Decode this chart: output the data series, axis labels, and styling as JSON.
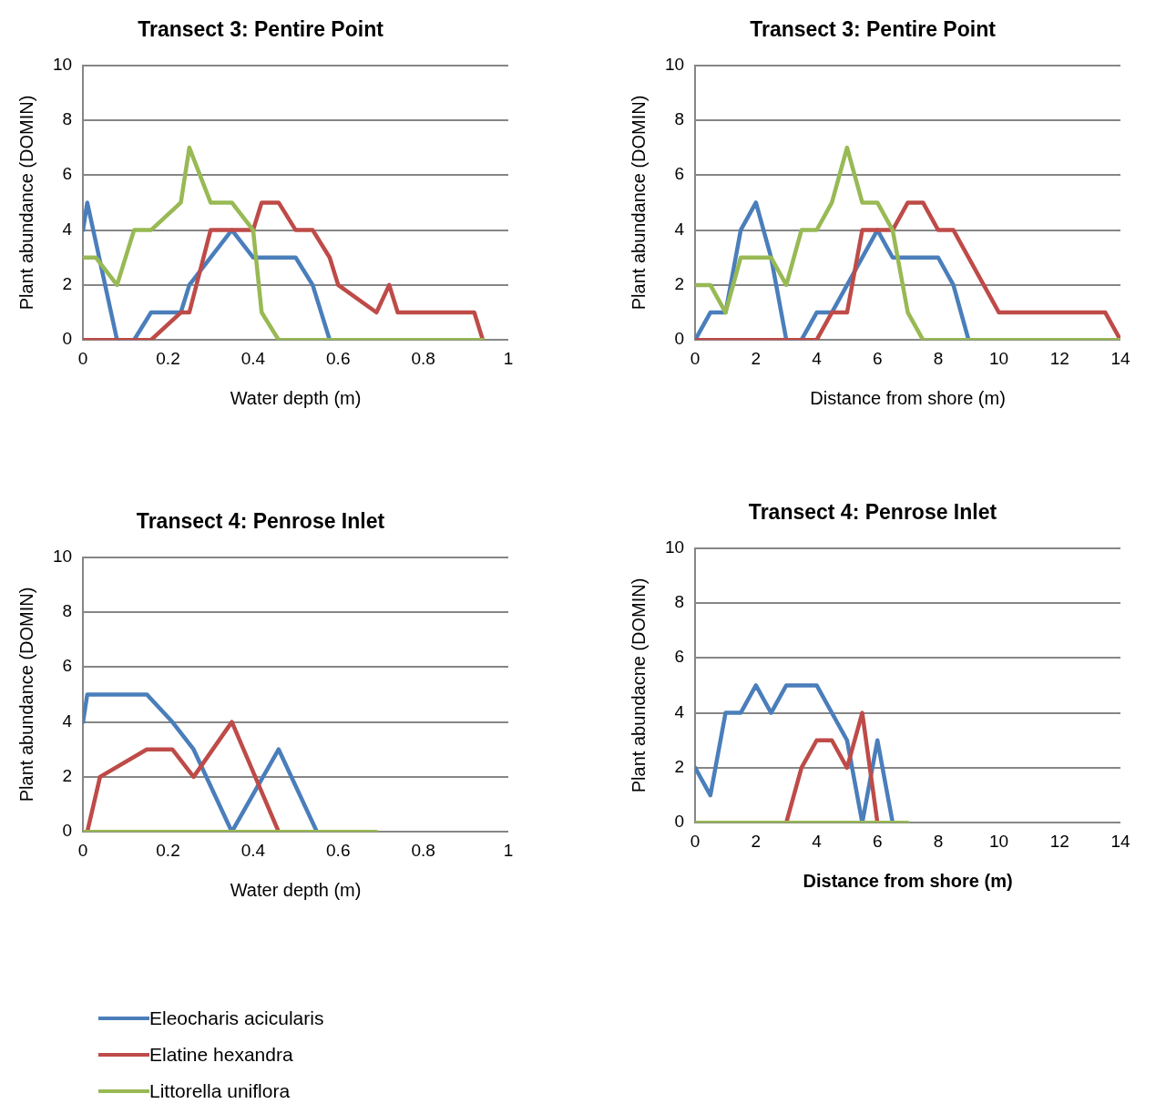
{
  "chart_data": [
    {
      "type": "line",
      "title": "Transect 3: Pentire Point",
      "xlabel": "Water depth (m)",
      "ylabel": "Plant abundance (DOMIN)",
      "xlim": [
        0,
        1
      ],
      "xticks": [
        0,
        0.2,
        0.4,
        0.6,
        0.8,
        1
      ],
      "ylim": [
        0,
        10
      ],
      "yticks": [
        0,
        2,
        4,
        6,
        8,
        10
      ],
      "grid": "y",
      "legend": false,
      "series": [
        {
          "color": "#4a7ebb",
          "x": [
            0,
            0.01,
            0.08,
            0.12,
            0.16,
            0.23,
            0.25,
            0.35,
            0.4,
            0.5,
            0.54,
            0.58
          ],
          "values": [
            4,
            5,
            0,
            0,
            1,
            1,
            2,
            4,
            3,
            3,
            2,
            0
          ]
        },
        {
          "color": "#be4b48",
          "x": [
            0,
            0.16,
            0.23,
            0.25,
            0.3,
            0.4,
            0.42,
            0.46,
            0.5,
            0.54,
            0.58,
            0.6,
            0.69,
            0.72,
            0.74,
            0.92,
            0.94
          ],
          "values": [
            0,
            0,
            1,
            1,
            4,
            4,
            5,
            5,
            4,
            4,
            3,
            2,
            1,
            2,
            1,
            1,
            0
          ]
        },
        {
          "color": "#98b954",
          "x": [
            0,
            0.03,
            0.08,
            0.12,
            0.16,
            0.23,
            0.25,
            0.3,
            0.35,
            0.4,
            0.42,
            0.46,
            0.94
          ],
          "values": [
            3,
            3,
            2,
            4,
            4,
            5,
            7,
            5,
            5,
            4,
            1,
            0,
            0
          ]
        }
      ]
    },
    {
      "type": "line",
      "title": "Transect 3: Pentire Point",
      "xlabel": "Distance from shore (m)",
      "ylabel": "Plant abundance (DOMIN)",
      "xlim": [
        0,
        14
      ],
      "xticks": [
        0,
        2,
        4,
        6,
        8,
        10,
        12,
        14
      ],
      "ylim": [
        0,
        10
      ],
      "yticks": [
        0,
        2,
        4,
        6,
        8,
        10
      ],
      "grid": "y",
      "legend": false,
      "series": [
        {
          "color": "#4a7ebb",
          "x": [
            0,
            0.5,
            1,
            1.5,
            2,
            2.5,
            3,
            3.5,
            4,
            4.5,
            6,
            6.5,
            8,
            8.5,
            9
          ],
          "values": [
            0,
            1,
            1,
            4,
            5,
            3,
            0,
            0,
            1,
            1,
            4,
            3,
            3,
            2,
            0
          ]
        },
        {
          "color": "#be4b48",
          "x": [
            0,
            4,
            4.5,
            5,
            5.5,
            6.5,
            7,
            7.5,
            8,
            8.5,
            10,
            13.5,
            14
          ],
          "values": [
            0,
            0,
            1,
            1,
            4,
            4,
            5,
            5,
            4,
            4,
            1,
            1,
            0
          ]
        },
        {
          "color": "#98b954",
          "x": [
            0,
            0.5,
            1,
            1.5,
            2.5,
            3,
            3.5,
            4,
            4.5,
            5,
            5.5,
            6,
            6.5,
            7,
            7.5,
            14
          ],
          "values": [
            2,
            2,
            1,
            3,
            3,
            2,
            4,
            4,
            5,
            7,
            5,
            5,
            4,
            1,
            0,
            0
          ]
        }
      ]
    },
    {
      "type": "line",
      "title": "Transect 4: Penrose Inlet",
      "xlabel": "Water depth (m)",
      "ylabel": "Plant abundance (DOMIN)",
      "xlim": [
        0,
        1
      ],
      "xticks": [
        0,
        0.2,
        0.4,
        0.6,
        0.8,
        1
      ],
      "ylim": [
        0,
        10
      ],
      "yticks": [
        0,
        2,
        4,
        6,
        8,
        10
      ],
      "grid": "y",
      "legend": "bottom",
      "series": [
        {
          "name": "Eleocharis acicularis",
          "color": "#4a7ebb",
          "x": [
            0,
            0.01,
            0.15,
            0.21,
            0.26,
            0.35,
            0.46,
            0.55
          ],
          "values": [
            4,
            5,
            5,
            4,
            3,
            0,
            3,
            0
          ]
        },
        {
          "name": "Elatine hexandra",
          "color": "#be4b48",
          "x": [
            0.01,
            0.04,
            0.15,
            0.21,
            0.26,
            0.35,
            0.46
          ],
          "values": [
            0,
            2,
            3,
            3,
            2,
            4,
            0
          ]
        },
        {
          "name": "Littorella uniflora",
          "color": "#98b954",
          "x": [
            0,
            0.69
          ],
          "values": [
            0,
            0
          ]
        }
      ]
    },
    {
      "type": "line",
      "title": "Transect 4: Penrose Inlet",
      "xlabel": "Distance from shore (m)",
      "ylabel": "Plant abundacne (DOMIN)",
      "xlim": [
        0,
        14
      ],
      "xticks": [
        0,
        2,
        4,
        6,
        8,
        10,
        12,
        14
      ],
      "ylim": [
        0,
        10
      ],
      "yticks": [
        0,
        2,
        4,
        6,
        8,
        10
      ],
      "grid": "y",
      "legend": false,
      "series": [
        {
          "color": "#4a7ebb",
          "x": [
            0,
            0.5,
            1,
            1.5,
            2,
            2.5,
            3,
            4,
            5,
            5.5,
            6,
            6.5
          ],
          "values": [
            2,
            1,
            4,
            4,
            5,
            4,
            5,
            5,
            3,
            0,
            3,
            0
          ]
        },
        {
          "color": "#be4b48",
          "x": [
            3,
            3.5,
            4,
            4.5,
            5,
            5.5,
            6
          ],
          "values": [
            0,
            2,
            3,
            3,
            2,
            4,
            0
          ]
        },
        {
          "color": "#98b954",
          "x": [
            0,
            7
          ],
          "values": [
            0,
            0
          ]
        }
      ]
    }
  ]
}
